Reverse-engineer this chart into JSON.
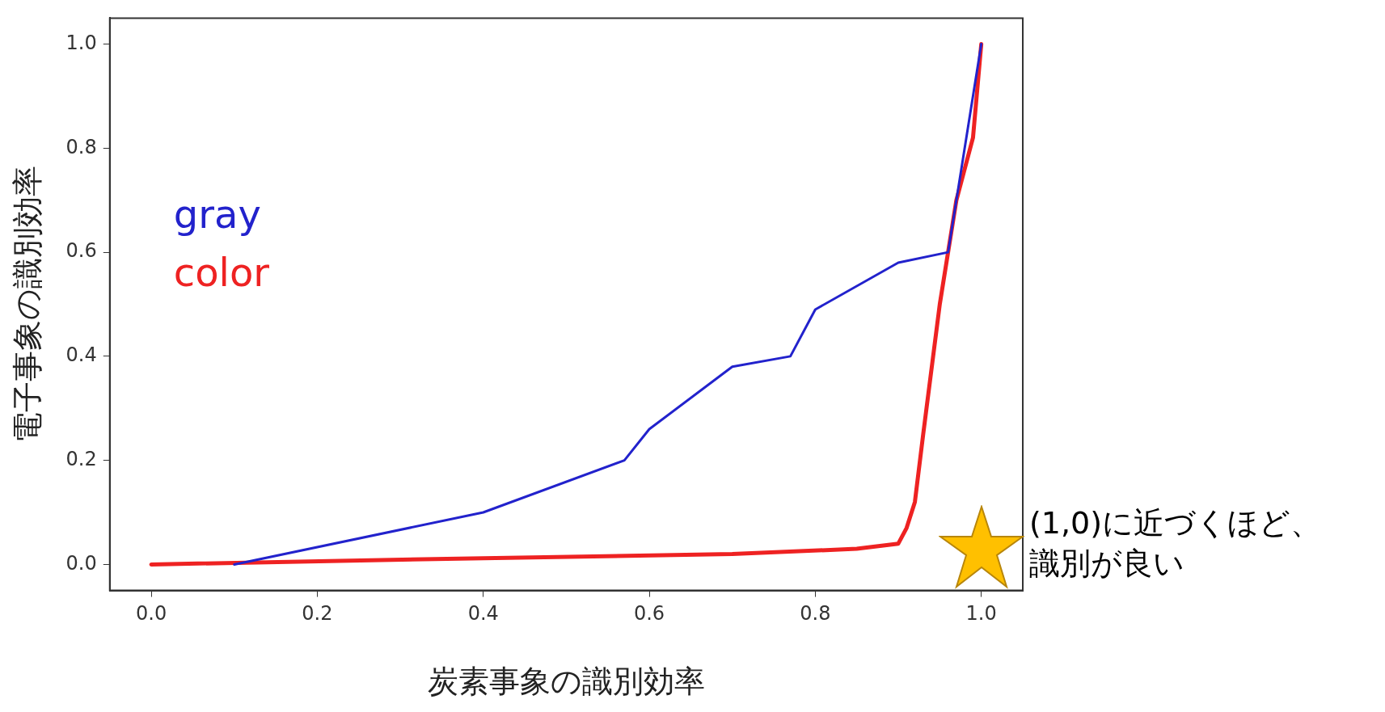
{
  "chart_data": {
    "type": "line",
    "xlabel": "炭素事象の識別効率",
    "ylabel": "電子事象の識別効率",
    "xlim": [
      -0.05,
      1.05
    ],
    "ylim": [
      -0.05,
      1.05
    ],
    "xticks": [
      {
        "value": 0,
        "label": "0.0"
      },
      {
        "value": 0.2,
        "label": "0.2"
      },
      {
        "value": 0.4,
        "label": "0.4"
      },
      {
        "value": 0.6,
        "label": "0.6"
      },
      {
        "value": 0.8,
        "label": "0.8"
      },
      {
        "value": 1,
        "label": "1.0"
      }
    ],
    "yticks": [
      {
        "value": 0,
        "label": "0.0"
      },
      {
        "value": 0.2,
        "label": "0.2"
      },
      {
        "value": 0.4,
        "label": "0.4"
      },
      {
        "value": 0.6,
        "label": "0.6"
      },
      {
        "value": 0.8,
        "label": "0.8"
      },
      {
        "value": 1,
        "label": "1.0"
      }
    ],
    "grid": false,
    "legend": "left",
    "marker": "none",
    "line_style": "solid",
    "series": [
      {
        "name": "gray",
        "color": "#2222cc",
        "x": [
          0.1,
          0.4,
          0.57,
          0.6,
          0.7,
          0.77,
          0.8,
          0.9,
          0.96,
          0.98,
          1.0
        ],
        "values": [
          0,
          0.1,
          0.2,
          0.26,
          0.38,
          0.4,
          0.49,
          0.58,
          0.6,
          0.8,
          1.0
        ]
      },
      {
        "name": "color",
        "color": "#ee2222",
        "x": [
          0,
          0.4,
          0.7,
          0.85,
          0.9,
          0.91,
          0.92,
          0.93,
          0.95,
          0.97,
          0.99,
          1.0
        ],
        "values": [
          0,
          0.012,
          0.02,
          0.03,
          0.04,
          0.07,
          0.12,
          0.25,
          0.5,
          0.7,
          0.82,
          1.0
        ]
      }
    ],
    "annotations": [
      "(1,0)に近づくほど、識別が良い"
    ]
  }
}
